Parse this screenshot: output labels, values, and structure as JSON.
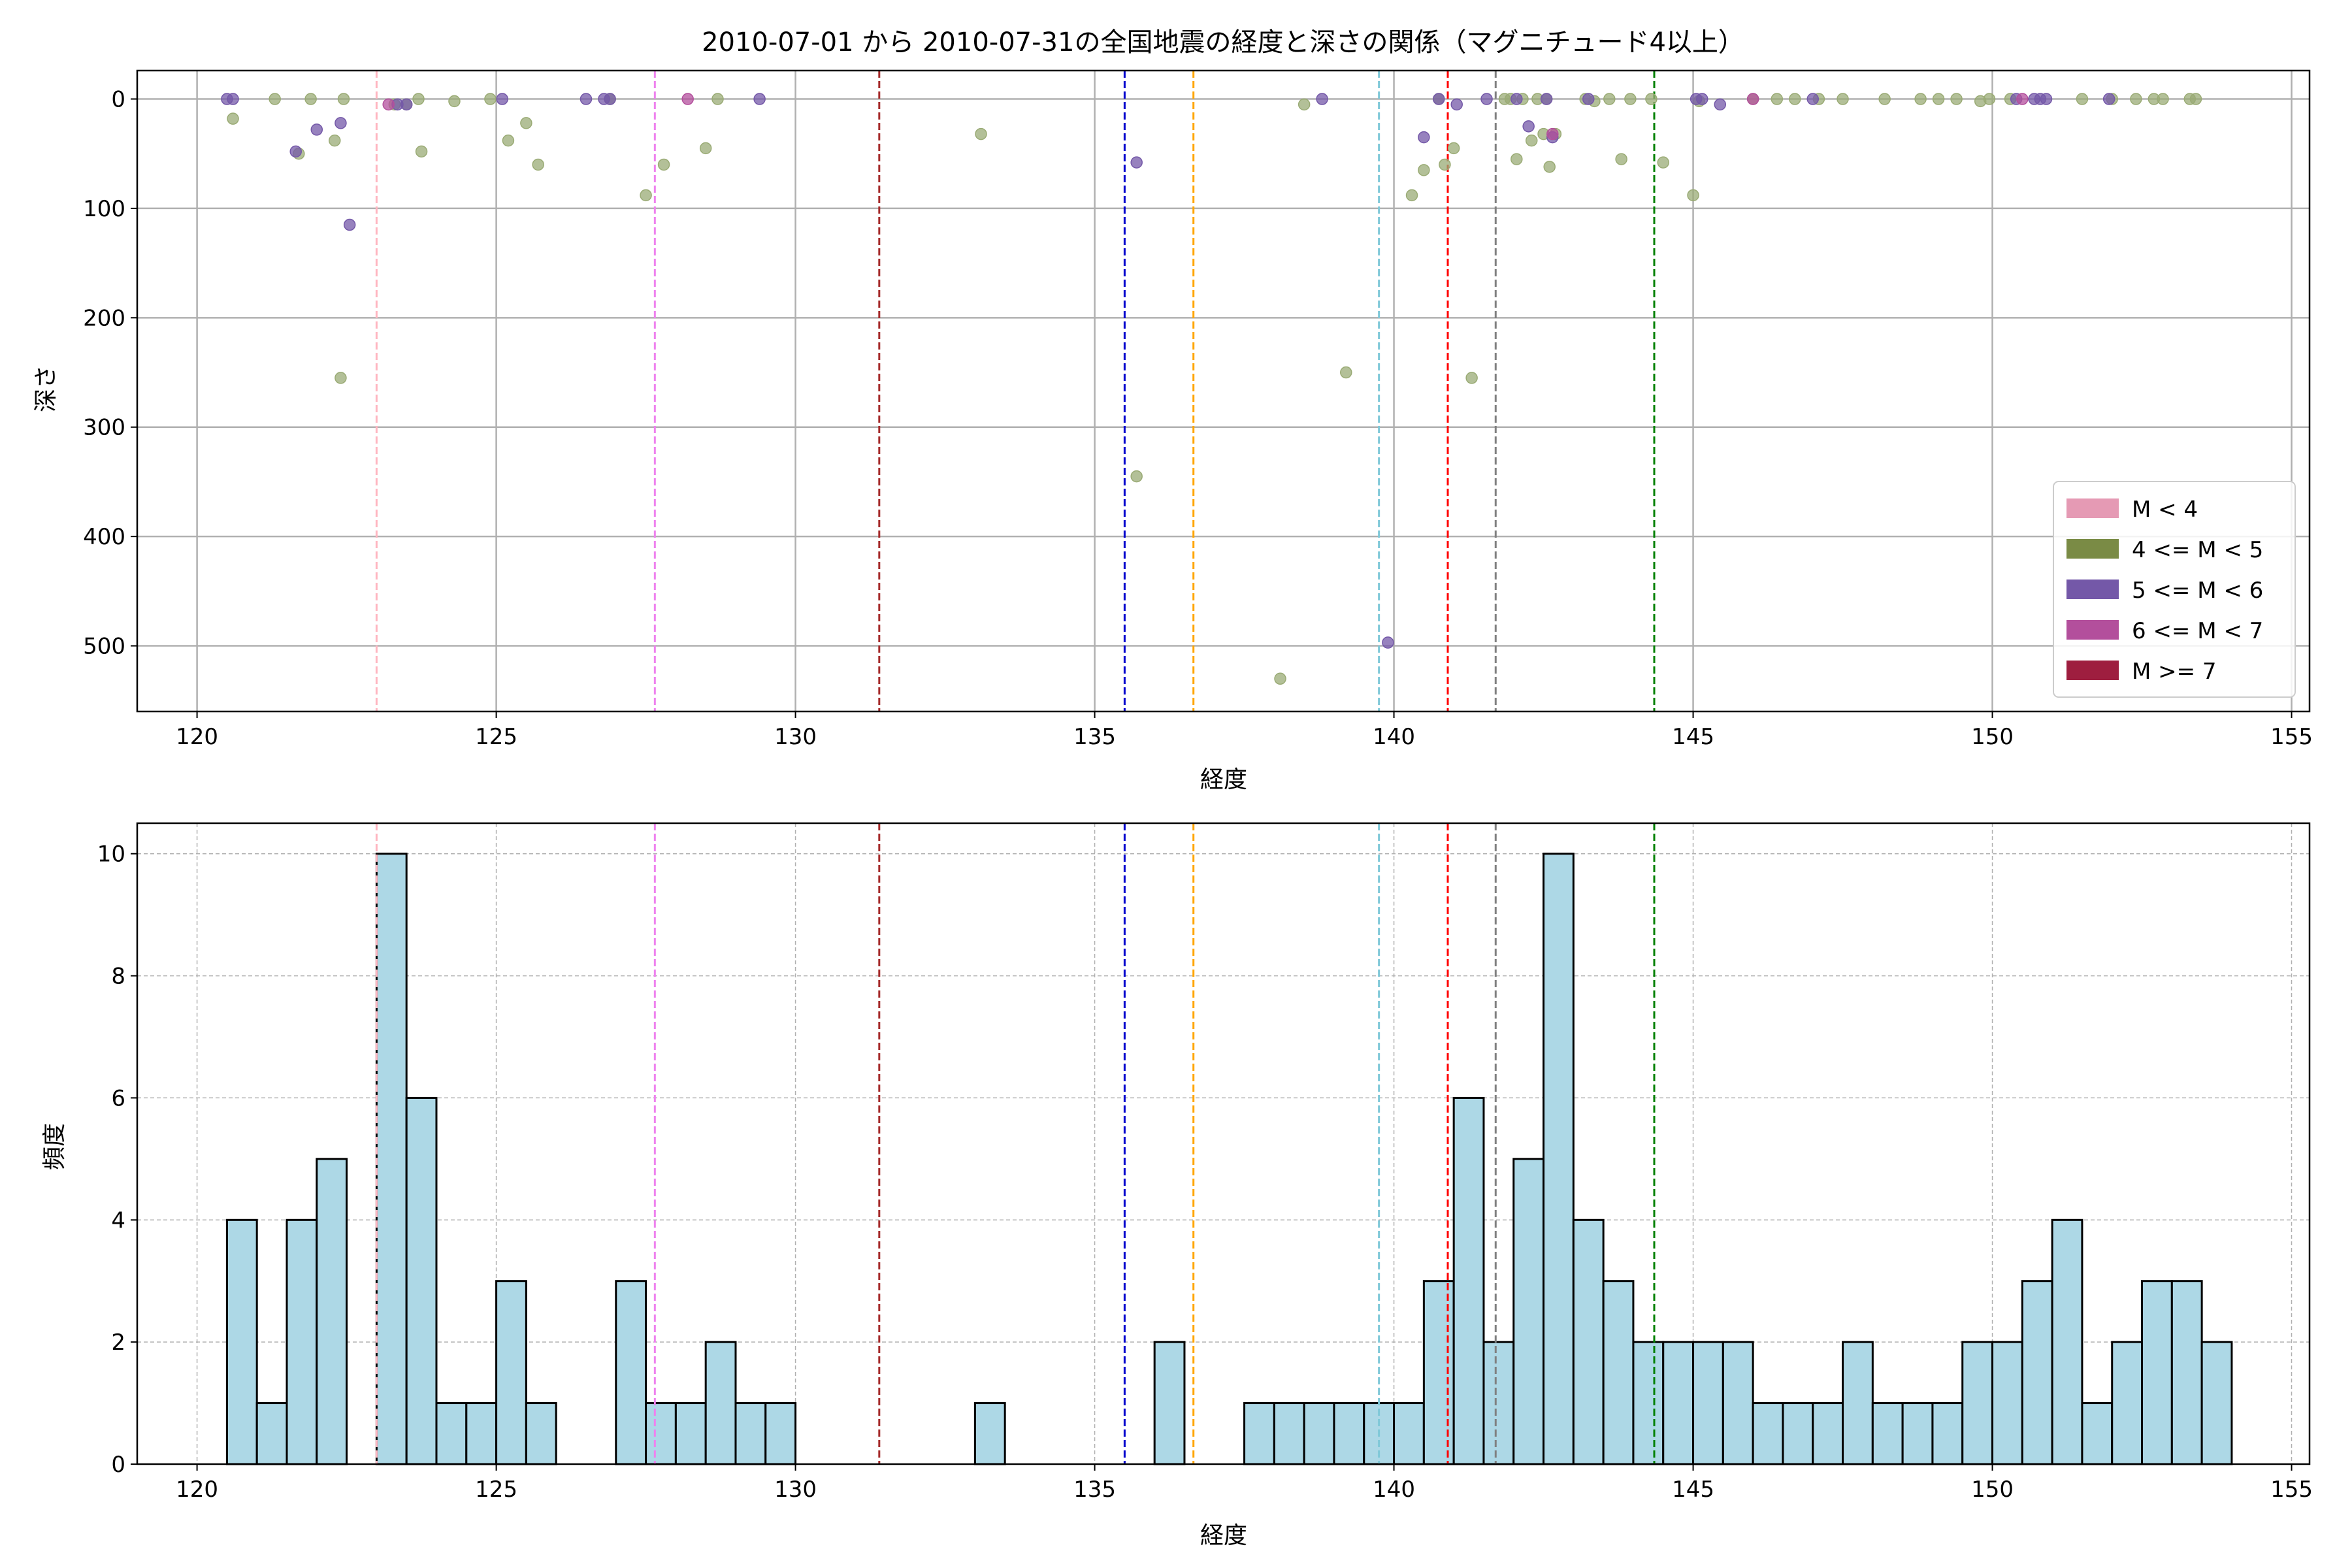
{
  "chart_data": [
    {
      "type": "scatter",
      "title": "2010-07-01 から 2010-07-31の全国地震の経度と深さの関係（マグニチュード4以上）",
      "xlabel": "経度",
      "ylabel": "深さ",
      "xlim": [
        119,
        155.3
      ],
      "ylim": [
        560,
        -26
      ],
      "y_inverted": true,
      "grid": true,
      "xticks": [
        120,
        125,
        130,
        135,
        140,
        145,
        150,
        155
      ],
      "yticks": [
        0,
        100,
        200,
        300,
        400,
        500
      ],
      "legend": {
        "placement": "lower-right",
        "entries": [
          {
            "label": "M < 4",
            "color": "#e59ab4"
          },
          {
            "label": "4 <= M < 5",
            "color": "#7a8b45"
          },
          {
            "label": "5 <= M < 6",
            "color": "#7458a8"
          },
          {
            "label": "6 <= M < 7",
            "color": "#b34f9c"
          },
          {
            "label": "M >= 7",
            "color": "#9e1e3f"
          }
        ]
      },
      "vlines": [
        {
          "x": 123.0,
          "color": "#ffb6c1"
        },
        {
          "x": 127.65,
          "color": "#ee82ee"
        },
        {
          "x": 131.4,
          "color": "#a52a2a"
        },
        {
          "x": 135.5,
          "color": "#0000cd"
        },
        {
          "x": 136.65,
          "color": "#ffa500"
        },
        {
          "x": 139.75,
          "color": "#7ec8d8"
        },
        {
          "x": 140.9,
          "color": "#ff0000"
        },
        {
          "x": 141.7,
          "color": "#808080"
        },
        {
          "x": 144.35,
          "color": "#008000"
        }
      ],
      "series": [
        {
          "group": "4 <= M < 5",
          "color": "#9aab75",
          "points": [
            [
              120.6,
              18
            ],
            [
              121.3,
              0
            ],
            [
              121.7,
              50
            ],
            [
              121.9,
              0
            ],
            [
              122.3,
              38
            ],
            [
              122.45,
              0
            ],
            [
              122.4,
              255
            ],
            [
              123.3,
              5
            ],
            [
              123.5,
              5
            ],
            [
              123.7,
              0
            ],
            [
              123.75,
              48
            ],
            [
              124.3,
              2
            ],
            [
              124.9,
              0
            ],
            [
              125.2,
              38
            ],
            [
              125.5,
              22
            ],
            [
              125.7,
              60
            ],
            [
              126.9,
              0
            ],
            [
              127.5,
              88
            ],
            [
              127.8,
              60
            ],
            [
              128.5,
              45
            ],
            [
              128.7,
              0
            ],
            [
              133.1,
              32
            ],
            [
              135.7,
              345
            ],
            [
              138.1,
              530
            ],
            [
              138.5,
              5
            ],
            [
              139.2,
              250
            ],
            [
              140.3,
              88
            ],
            [
              140.5,
              65
            ],
            [
              140.75,
              0
            ],
            [
              140.85,
              60
            ],
            [
              141.0,
              45
            ],
            [
              141.3,
              255
            ],
            [
              141.85,
              0
            ],
            [
              141.95,
              0
            ],
            [
              142.05,
              55
            ],
            [
              142.15,
              0
            ],
            [
              142.3,
              38
            ],
            [
              142.4,
              0
            ],
            [
              142.5,
              32
            ],
            [
              142.55,
              0
            ],
            [
              142.6,
              62
            ],
            [
              142.7,
              32
            ],
            [
              143.2,
              0
            ],
            [
              143.35,
              2
            ],
            [
              143.6,
              0
            ],
            [
              143.8,
              55
            ],
            [
              143.95,
              0
            ],
            [
              144.3,
              0
            ],
            [
              144.5,
              58
            ],
            [
              145.0,
              88
            ],
            [
              145.1,
              2
            ],
            [
              146.0,
              0
            ],
            [
              146.4,
              0
            ],
            [
              146.7,
              0
            ],
            [
              147.1,
              0
            ],
            [
              147.5,
              0
            ],
            [
              148.2,
              0
            ],
            [
              148.8,
              0
            ],
            [
              149.1,
              0
            ],
            [
              149.4,
              0
            ],
            [
              149.8,
              2
            ],
            [
              149.95,
              0
            ],
            [
              150.3,
              0
            ],
            [
              151.5,
              0
            ],
            [
              152.0,
              0
            ],
            [
              152.4,
              0
            ],
            [
              152.7,
              0
            ],
            [
              152.85,
              0
            ],
            [
              153.3,
              0
            ],
            [
              153.4,
              0
            ]
          ]
        },
        {
          "group": "5 <= M < 6",
          "color": "#7458a8",
          "points": [
            [
              120.5,
              0
            ],
            [
              120.6,
              0
            ],
            [
              121.65,
              48
            ],
            [
              122.0,
              28
            ],
            [
              122.4,
              22
            ],
            [
              122.55,
              115
            ],
            [
              123.35,
              5
            ],
            [
              123.5,
              5
            ],
            [
              125.1,
              0
            ],
            [
              126.5,
              0
            ],
            [
              126.8,
              0
            ],
            [
              126.9,
              0
            ],
            [
              129.4,
              0
            ],
            [
              135.7,
              58
            ],
            [
              138.8,
              0
            ],
            [
              139.9,
              497
            ],
            [
              140.5,
              35
            ],
            [
              140.75,
              0
            ],
            [
              141.05,
              5
            ],
            [
              141.55,
              0
            ],
            [
              142.05,
              0
            ],
            [
              142.25,
              25
            ],
            [
              142.55,
              0
            ],
            [
              142.65,
              35
            ],
            [
              143.25,
              0
            ],
            [
              145.05,
              0
            ],
            [
              145.15,
              0
            ],
            [
              145.45,
              5
            ],
            [
              147.0,
              0
            ],
            [
              150.4,
              0
            ],
            [
              150.7,
              0
            ],
            [
              150.8,
              0
            ],
            [
              150.9,
              0
            ],
            [
              151.95,
              0
            ]
          ]
        },
        {
          "group": "6 <= M < 7",
          "color": "#b34f9c",
          "points": [
            [
              123.2,
              5
            ],
            [
              128.2,
              0
            ],
            [
              142.65,
              32
            ],
            [
              146.0,
              0
            ],
            [
              150.5,
              0
            ]
          ]
        }
      ]
    },
    {
      "type": "bar",
      "subtype": "histogram",
      "xlabel": "経度",
      "ylabel": "頻度",
      "xlim": [
        119,
        155.3
      ],
      "ylim": [
        0,
        10.5
      ],
      "grid": true,
      "xticks": [
        120,
        125,
        130,
        135,
        140,
        145,
        150,
        155
      ],
      "yticks": [
        0,
        2,
        4,
        6,
        8,
        10
      ],
      "bar_color": "#add8e6",
      "edge_color": "#000000",
      "bin_start": 120.5,
      "bin_width": 0.5,
      "values": [
        4,
        1,
        4,
        5,
        0,
        10,
        6,
        1,
        1,
        3,
        1,
        0,
        0,
        3,
        1,
        1,
        2,
        1,
        1,
        0,
        0,
        0,
        0,
        0,
        0,
        1,
        0,
        0,
        0,
        0,
        0,
        2,
        0,
        0,
        1,
        1,
        1,
        1,
        1,
        1,
        3,
        6,
        2,
        5,
        10,
        4,
        3,
        2,
        2,
        2,
        2,
        1,
        1,
        1,
        2,
        1,
        1,
        1,
        2,
        2,
        3,
        4,
        1,
        2,
        3,
        3,
        2
      ],
      "vlines": [
        {
          "x": 123.0,
          "color": "#ffb6c1"
        },
        {
          "x": 127.65,
          "color": "#ee82ee"
        },
        {
          "x": 131.4,
          "color": "#a52a2a"
        },
        {
          "x": 135.5,
          "color": "#0000cd"
        },
        {
          "x": 136.65,
          "color": "#ffa500"
        },
        {
          "x": 139.75,
          "color": "#7ec8d8"
        },
        {
          "x": 140.9,
          "color": "#ff0000"
        },
        {
          "x": 141.7,
          "color": "#808080"
        },
        {
          "x": 144.35,
          "color": "#008000"
        }
      ]
    }
  ]
}
